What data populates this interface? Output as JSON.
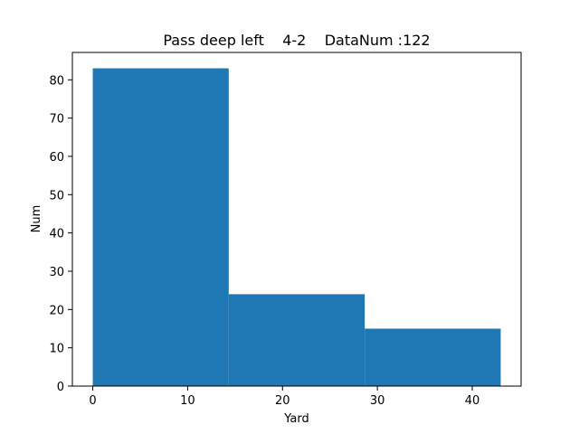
{
  "chart_data": {
    "type": "bar",
    "title": "Pass deep left    4-2    DataNum :122",
    "xlabel": "Yard",
    "ylabel": "Num",
    "bins": [
      {
        "x0": 0,
        "x1": 14.33,
        "value": 83
      },
      {
        "x0": 14.33,
        "x1": 28.67,
        "value": 24
      },
      {
        "x0": 28.67,
        "x1": 43,
        "value": 15
      }
    ],
    "xlim": [
      -2.15,
      45.15
    ],
    "ylim": [
      0,
      87.15
    ],
    "xticks": [
      0,
      10,
      20,
      30,
      40
    ],
    "yticks": [
      0,
      10,
      20,
      30,
      40,
      50,
      60,
      70,
      80
    ],
    "bar_color": "#1f77b4",
    "grid": false,
    "legend": "none"
  }
}
